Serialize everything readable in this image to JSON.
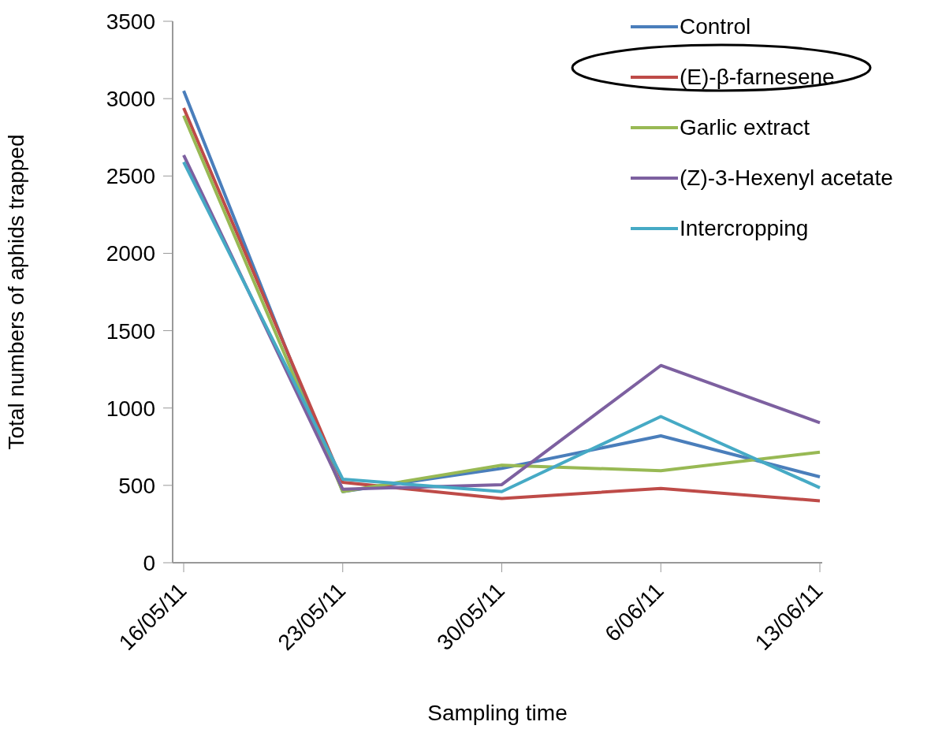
{
  "chart_data": {
    "type": "line",
    "xlabel": "Sampling time",
    "ylabel": "Total numbers of aphids trapped",
    "categories": [
      "16/05/11",
      "23/05/11",
      "30/05/11",
      "6/06/11",
      "13/06/11"
    ],
    "series": [
      {
        "name": "Control",
        "color": "#4a7ebb",
        "values": [
          3050,
          460,
          610,
          820,
          555
        ]
      },
      {
        "name": "(E)-β-farnesene",
        "color": "#be4b48",
        "values": [
          2940,
          520,
          415,
          480,
          400
        ]
      },
      {
        "name": "Garlic extract",
        "color": "#98b954",
        "values": [
          2890,
          460,
          630,
          595,
          715
        ]
      },
      {
        "name": "(Z)-3-Hexenyl acetate",
        "color": "#7d60a0",
        "values": [
          2635,
          475,
          505,
          1275,
          905
        ]
      },
      {
        "name": "Intercropping",
        "color": "#46aac5",
        "values": [
          2590,
          540,
          460,
          945,
          485
        ]
      }
    ],
    "ylim": [
      0,
      3500
    ],
    "yticks": [
      0,
      500,
      1000,
      1500,
      2000,
      2500,
      3000,
      3500
    ],
    "grid": false,
    "legend": "top right",
    "marker": "none",
    "line_style": "solid"
  }
}
